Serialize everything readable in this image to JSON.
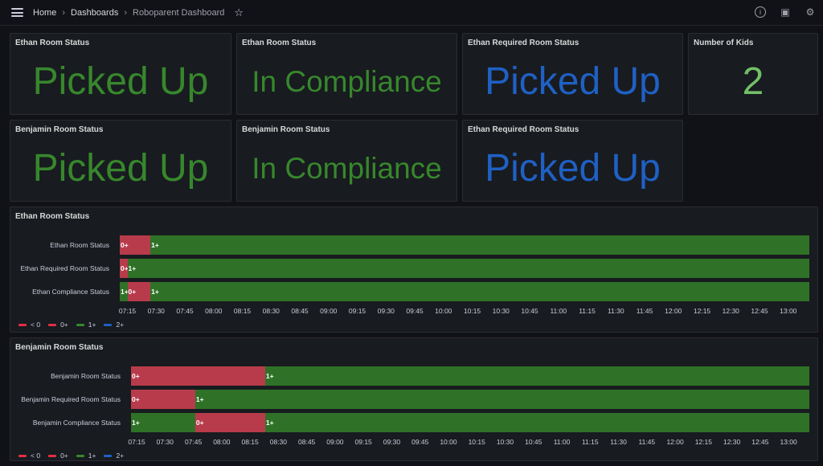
{
  "breadcrumb": {
    "home": "Home",
    "dashboards": "Dashboards",
    "current": "Roboparent Dashboard"
  },
  "colors": {
    "red": "#b83b4b",
    "green": "#2f7227",
    "blue": "#1f60c4",
    "text_green": "#37872d",
    "text_lightgreen": "#73bf69",
    "legend_red": "#e02f44",
    "legend_green": "#37872d"
  },
  "stats": [
    {
      "title": "Ethan Room Status",
      "value": "Picked Up",
      "color": "green"
    },
    {
      "title": "Ethan Room Status",
      "value": "In Compliance",
      "color": "green"
    },
    {
      "title": "Ethan Required Room Status",
      "value": "Picked Up",
      "color": "blue"
    },
    {
      "title": "Number of Kids",
      "value": "2",
      "color": "lightgreen"
    },
    {
      "title": "Benjamin Room Status",
      "value": "Picked Up",
      "color": "green"
    },
    {
      "title": "Benjamin Room Status",
      "value": "In Compliance",
      "color": "green"
    },
    {
      "title": "Ethan Required Room Status",
      "value": "Picked Up",
      "color": "blue"
    }
  ],
  "timelines": [
    {
      "title": "Ethan Room Status",
      "range": [
        "07:11",
        "13:11"
      ],
      "rows": [
        {
          "label": "Ethan Room Status",
          "segments": [
            {
              "from": "07:11",
              "to": "07:27",
              "state": "0+"
            },
            {
              "from": "07:27",
              "to": "13:11",
              "state": "1+"
            }
          ]
        },
        {
          "label": "Ethan Required Room Status",
          "segments": [
            {
              "from": "07:11",
              "to": "07:15",
              "state": "0+"
            },
            {
              "from": "07:15",
              "to": "13:11",
              "state": "1+"
            }
          ]
        },
        {
          "label": "Ethan Compliance Status",
          "segments": [
            {
              "from": "07:11",
              "to": "07:15",
              "state": "1+"
            },
            {
              "from": "07:15",
              "to": "07:27",
              "state": "0+"
            },
            {
              "from": "07:27",
              "to": "13:11",
              "state": "1+"
            }
          ]
        }
      ]
    },
    {
      "title": "Benjamin Room Status",
      "range": [
        "07:12",
        "13:11"
      ],
      "rows": [
        {
          "label": "Benjamin Room Status",
          "segments": [
            {
              "from": "07:12",
              "to": "08:23",
              "state": "0+"
            },
            {
              "from": "08:23",
              "to": "13:11",
              "state": "1+"
            }
          ]
        },
        {
          "label": "Benjamin Required Room Status",
          "segments": [
            {
              "from": "07:12",
              "to": "07:46",
              "state": "0+"
            },
            {
              "from": "07:46",
              "to": "13:11",
              "state": "1+"
            }
          ]
        },
        {
          "label": "Benjamin Compliance Status",
          "segments": [
            {
              "from": "07:12",
              "to": "07:46",
              "state": "1+"
            },
            {
              "from": "07:46",
              "to": "08:23",
              "state": "0+"
            },
            {
              "from": "08:23",
              "to": "13:11",
              "state": "1+"
            }
          ]
        }
      ]
    }
  ],
  "ticks": [
    "07:15",
    "07:30",
    "07:45",
    "08:00",
    "08:15",
    "08:30",
    "08:45",
    "09:00",
    "09:15",
    "09:30",
    "09:45",
    "10:00",
    "10:15",
    "10:30",
    "10:45",
    "11:00",
    "11:15",
    "11:30",
    "11:45",
    "12:00",
    "12:15",
    "12:30",
    "12:45",
    "13:00"
  ],
  "legend": [
    {
      "label": "< 0",
      "color": "red"
    },
    {
      "label": "0+",
      "color": "red"
    },
    {
      "label": "1+",
      "color": "green"
    },
    {
      "label": "2+",
      "color": "blue"
    }
  ]
}
